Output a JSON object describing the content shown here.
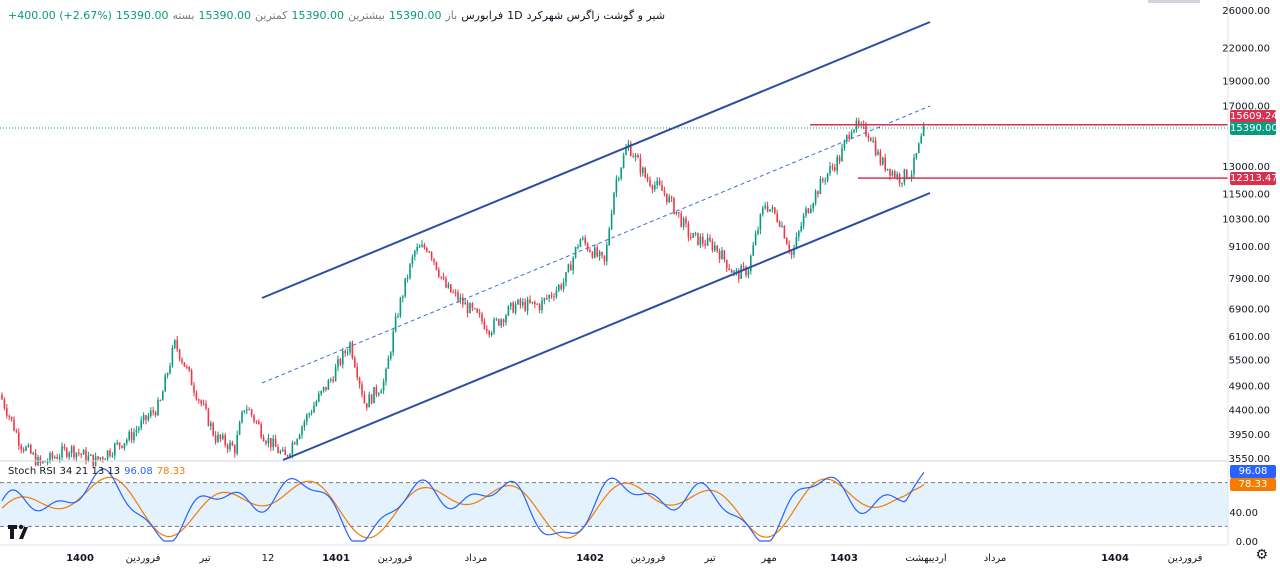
{
  "header": {
    "title": "شیر و گوشت زاگرس شهرکرد",
    "interval": "1D",
    "exchange": "فرابورس",
    "open_label": "باز",
    "open_value": "15390.00",
    "high_label": "بیشترین",
    "high_value": "15390.00",
    "low_label": "کمترین",
    "low_value": "15390.00",
    "close_label": "بسته",
    "close_value": "15390.00",
    "change": "+400.00 (+2.67%)"
  },
  "rsi_header": {
    "label": "Stoch RSI",
    "params": "34 21 13 13",
    "k_value": "96.08",
    "d_value": "78.33"
  },
  "price_axis_labels": [
    "26000.00",
    "22000.00",
    "19000.00",
    "17000.00",
    "13000.00",
    "11500.00",
    "10300.00",
    "9100.00",
    "7900.00",
    "6900.00",
    "6100.00",
    "5500.00",
    "4900.00",
    "4400.00",
    "3950.00",
    "3550.00"
  ],
  "price_badges": {
    "resistance": "15609.24",
    "last": "15390.00",
    "support": "12313.47"
  },
  "rsi_axis_labels": [
    "40.00",
    "0.00"
  ],
  "rsi_badges": {
    "k": "96.08",
    "d": "78.33"
  },
  "time_axis_labels": [
    "1400",
    "فروردین",
    "تیر",
    "12",
    "1401",
    "فروردین",
    "مرداد",
    "1402",
    "فروردین",
    "تیر",
    "مهر",
    "1403",
    "اردیبهشت",
    "مرداد",
    "1404",
    "فروردین"
  ],
  "colors": {
    "up": "#089981",
    "down": "#f23645",
    "channel": "#2b4da3",
    "level": "#d9304f",
    "k": "#2962ff",
    "d": "#f57c00",
    "rsi_band": "#e3f2fd",
    "last_price": "#089981"
  },
  "chart_data": {
    "type": "candlestick",
    "title": "شیر و گوشت زاگرس شهرکرد",
    "interval": "1D",
    "price_scale": "log",
    "ylim": [
      3550,
      26000
    ],
    "last_price": 15390,
    "levels": {
      "resistance": 15609.24,
      "support": 12313.47
    },
    "price_path": [
      {
        "t": 0,
        "p": 4700
      },
      {
        "t": 20,
        "p": 3800
      },
      {
        "t": 40,
        "p": 3450
      },
      {
        "t": 70,
        "p": 3700
      },
      {
        "t": 95,
        "p": 3500
      },
      {
        "t": 130,
        "p": 3900
      },
      {
        "t": 160,
        "p": 4500
      },
      {
        "t": 175,
        "p": 5900
      },
      {
        "t": 195,
        "p": 4800
      },
      {
        "t": 215,
        "p": 3900
      },
      {
        "t": 235,
        "p": 3700
      },
      {
        "t": 245,
        "p": 4500
      },
      {
        "t": 265,
        "p": 3900
      },
      {
        "t": 285,
        "p": 3550
      },
      {
        "t": 305,
        "p": 4200
      },
      {
        "t": 330,
        "p": 5000
      },
      {
        "t": 350,
        "p": 5900
      },
      {
        "t": 365,
        "p": 4500
      },
      {
        "t": 385,
        "p": 5000
      },
      {
        "t": 398,
        "p": 6800
      },
      {
        "t": 415,
        "p": 8900
      },
      {
        "t": 428,
        "p": 9100
      },
      {
        "t": 445,
        "p": 7600
      },
      {
        "t": 465,
        "p": 7000
      },
      {
        "t": 490,
        "p": 6300
      },
      {
        "t": 515,
        "p": 7000
      },
      {
        "t": 540,
        "p": 7000
      },
      {
        "t": 565,
        "p": 7800
      },
      {
        "t": 580,
        "p": 9400
      },
      {
        "t": 605,
        "p": 8400
      },
      {
        "t": 615,
        "p": 12000
      },
      {
        "t": 628,
        "p": 14300
      },
      {
        "t": 645,
        "p": 12400
      },
      {
        "t": 665,
        "p": 11500
      },
      {
        "t": 690,
        "p": 9500
      },
      {
        "t": 715,
        "p": 9100
      },
      {
        "t": 735,
        "p": 8000
      },
      {
        "t": 748,
        "p": 8200
      },
      {
        "t": 765,
        "p": 11000
      },
      {
        "t": 780,
        "p": 10200
      },
      {
        "t": 792,
        "p": 8700
      },
      {
        "t": 805,
        "p": 10500
      },
      {
        "t": 825,
        "p": 12400
      },
      {
        "t": 840,
        "p": 13500
      },
      {
        "t": 852,
        "p": 15600
      },
      {
        "t": 870,
        "p": 15000
      },
      {
        "t": 880,
        "p": 13300
      },
      {
        "t": 900,
        "p": 12300
      },
      {
        "t": 912,
        "p": 12700
      },
      {
        "t": 925,
        "p": 15390
      }
    ],
    "stoch_rsi": {
      "params": [
        34,
        21,
        13,
        13
      ],
      "k_last": 96.08,
      "d_last": 78.33,
      "ylim": [
        0,
        100
      ],
      "bands": [
        20,
        80
      ]
    }
  }
}
